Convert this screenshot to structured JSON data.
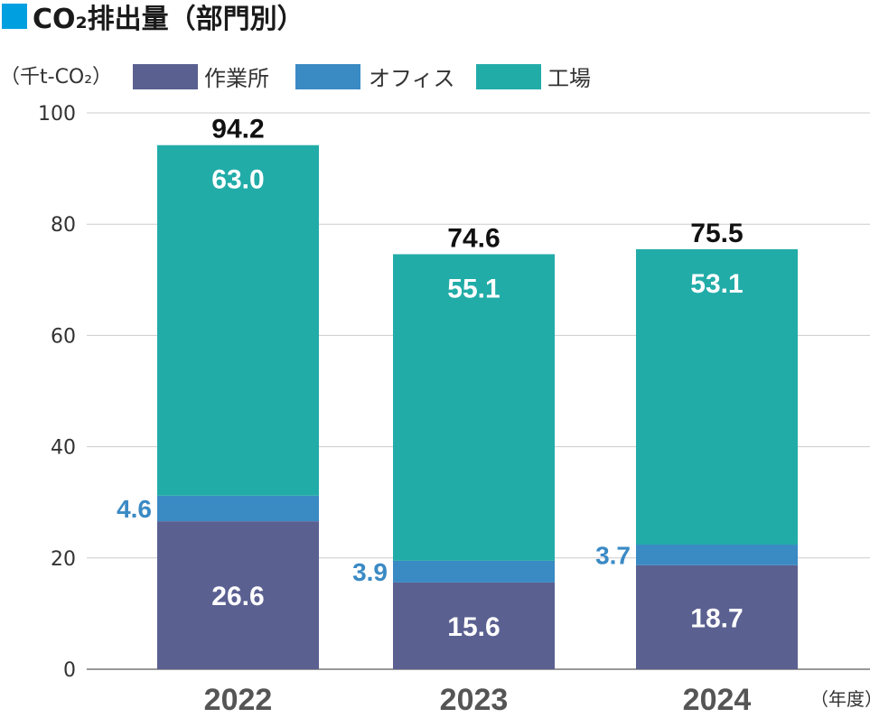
{
  "chart_data": {
    "type": "bar",
    "stacked": true,
    "title": "CO₂排出量（部門別）",
    "unit_label": "（千t-CO₂）",
    "x_unit_label": "（年度）",
    "categories": [
      "2022",
      "2023",
      "2024"
    ],
    "series": [
      {
        "name": "作業所",
        "values": [
          26.6,
          15.6,
          18.7
        ],
        "color": "#5a6090",
        "labels": [
          "26.6",
          "15.6",
          "18.7"
        ]
      },
      {
        "name": "オフィス",
        "values": [
          4.6,
          3.9,
          3.7
        ],
        "color": "#3a8ac4",
        "labels": [
          "4.6",
          "3.9",
          "3.7"
        ]
      },
      {
        "name": "工場",
        "values": [
          63.0,
          55.1,
          53.1
        ],
        "color": "#22aca8",
        "labels": [
          "63.0",
          "55.1",
          "53.1"
        ]
      }
    ],
    "totals": [
      "94.2",
      "74.6",
      "75.5"
    ],
    "ylim": [
      0,
      100
    ],
    "yticks": [
      "0",
      "20",
      "40",
      "60",
      "80",
      "100"
    ],
    "grid": true,
    "legend_position": "top",
    "title_marker_color": "#00a0e0"
  }
}
